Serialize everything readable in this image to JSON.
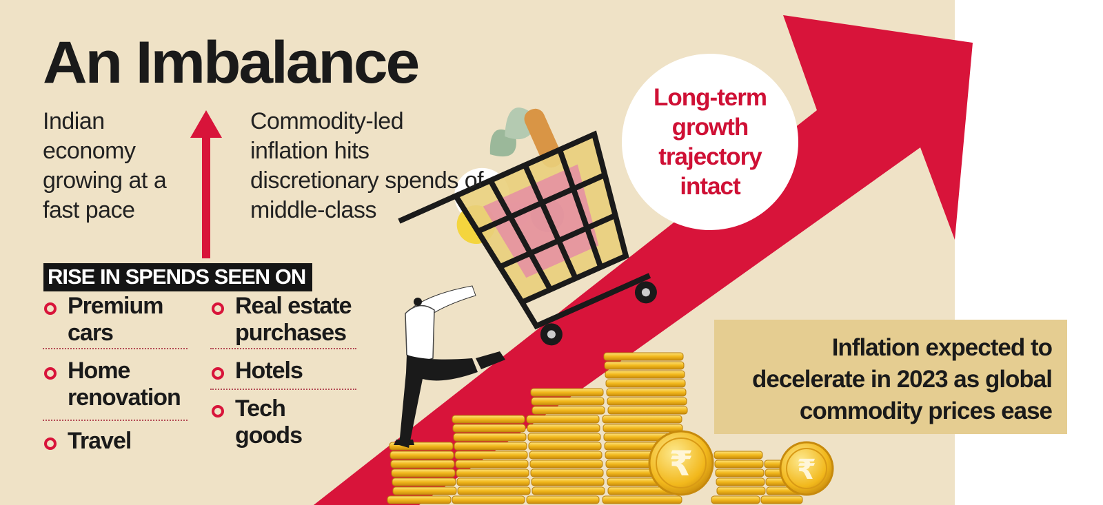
{
  "title": "An Imbalance",
  "intro_left": "Indian economy growing at a fast pace",
  "intro_right": "Commodity-led inflation hits discretionary spends of middle-class",
  "banner": "RISE IN SPENDS SEEN ON",
  "left_items": [
    {
      "text": "Premium cars"
    },
    {
      "text": "Home renovation"
    },
    {
      "text": "Travel"
    }
  ],
  "right_items": [
    {
      "text": "Real estate purchases"
    },
    {
      "text": "Hotels"
    },
    {
      "text": "Tech goods"
    }
  ],
  "circle_text": "Long-term growth trajectory intact",
  "box_text": "Inflation expected to decelerate in 2023 as global commodity prices ease",
  "currency_symbol": "₹",
  "colors": {
    "background": "#efe2c6",
    "accent_red": "#d8143a",
    "gold": "#f2b81c",
    "box": "#e5cd91",
    "dark": "#151515"
  },
  "icons": [
    "upward-arrow",
    "shopping-cart",
    "rupee-coin",
    "coin-stack",
    "person-pushing-cart"
  ]
}
